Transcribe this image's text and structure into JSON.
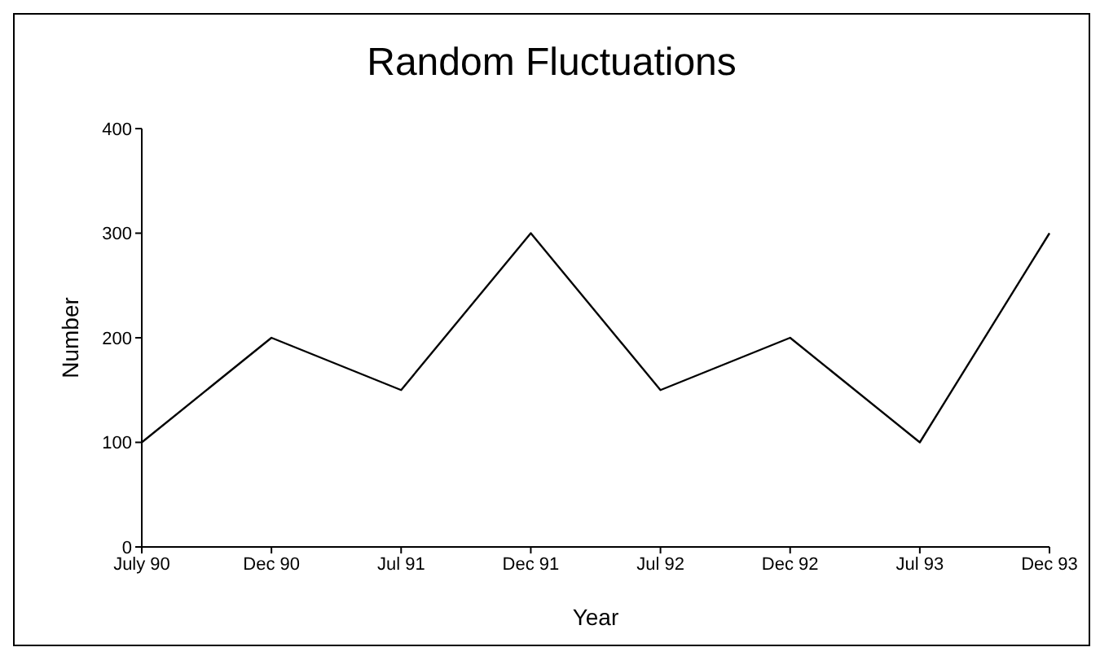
{
  "chart_data": {
    "type": "line",
    "title": "Random Fluctuations",
    "xlabel": "Year",
    "ylabel": "Number",
    "categories": [
      "July 90",
      "Dec 90",
      "Jul 91",
      "Dec 91",
      "Jul 92",
      "Dec 92",
      "Jul 93",
      "Dec 93"
    ],
    "series": [
      {
        "color": "#000000",
        "values": [
          100,
          200,
          150,
          300,
          150,
          200,
          100,
          300
        ]
      }
    ],
    "ylim": [
      0,
      400
    ],
    "yticks": [
      0,
      100,
      200,
      300,
      400
    ],
    "grid": false,
    "legend": false,
    "marker": "none",
    "line_style": "solid"
  }
}
